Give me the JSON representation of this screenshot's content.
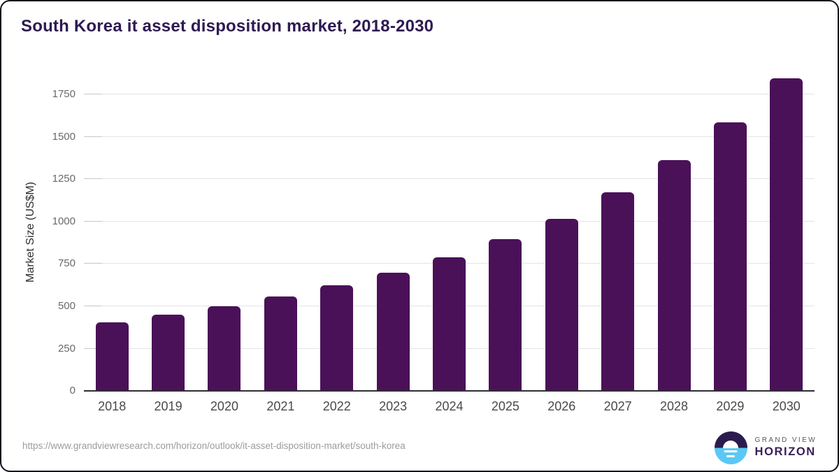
{
  "title": "South Korea it asset disposition market, 2018-2030",
  "source_url": "https://www.grandviewresearch.com/horizon/outlook/it-asset-disposition-market/south-korea",
  "branding": {
    "name_top": "GRAND VIEW",
    "name_bottom": "HORIZON"
  },
  "colors": {
    "bar": "#4a1158",
    "title_text": "#2e1a52",
    "gridline": "#e4e4ea",
    "axis_line": "#2e2e33",
    "logo_dark": "#2b1b4d",
    "logo_blue": "#5ac8f5"
  },
  "chart_data": {
    "type": "bar",
    "title": "South Korea it asset disposition market, 2018-2030",
    "categories": [
      "2018",
      "2019",
      "2020",
      "2021",
      "2022",
      "2023",
      "2024",
      "2025",
      "2026",
      "2027",
      "2028",
      "2029",
      "2030"
    ],
    "values": [
      403,
      449,
      500,
      557,
      626,
      698,
      788,
      896,
      1016,
      1172,
      1362,
      1587,
      1845
    ],
    "xlabel": "",
    "ylabel": "Market Size (US$M)",
    "yticks": [
      0,
      250,
      500,
      750,
      1000,
      1250,
      1500,
      1750
    ],
    "ylim": [
      0,
      1880
    ],
    "grid": true,
    "legend": "none"
  }
}
